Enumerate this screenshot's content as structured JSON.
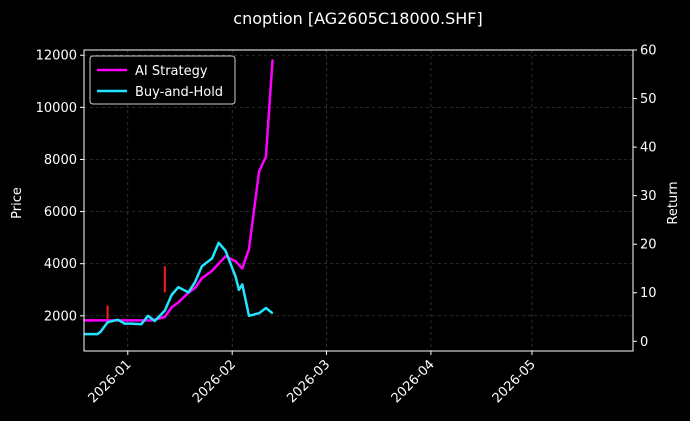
{
  "chart_data": {
    "type": "line",
    "title": "cnoption [AG2605C18000.SHF]",
    "xlabel": "",
    "ylabel": "Price",
    "y2label": "Return",
    "xlim": [
      "2025-12-19",
      "2026-05-31"
    ],
    "ylim": [
      650,
      12200
    ],
    "y2lim": [
      -2,
      60
    ],
    "xticks": [
      "2026-01",
      "2026-02",
      "2026-03",
      "2026-04",
      "2026-05"
    ],
    "yticks": [
      2000,
      4000,
      6000,
      8000,
      10000,
      12000
    ],
    "y2ticks": [
      0,
      10,
      20,
      30,
      40,
      50,
      60
    ],
    "grid": true,
    "legend": "top-left",
    "series": [
      {
        "name": "AI Strategy",
        "color": "#ff00ff",
        "axis": "right",
        "x": [
          "2025-12-19",
          "2025-12-23",
          "2025-12-26",
          "2025-12-29",
          "2025-12-31",
          "2026-01-02",
          "2026-01-05",
          "2026-01-08",
          "2026-01-12",
          "2026-01-14",
          "2026-01-16",
          "2026-01-19",
          "2026-01-21",
          "2026-01-23",
          "2026-01-26",
          "2026-01-28",
          "2026-01-30",
          "2026-02-02",
          "2026-02-04",
          "2026-02-06",
          "2026-02-09",
          "2026-02-11",
          "2026-02-13"
        ],
        "values": [
          4.3,
          4.3,
          4.3,
          4.3,
          4.3,
          4.3,
          4.3,
          4.3,
          5.0,
          7.0,
          8.0,
          10.0,
          11.0,
          13.0,
          14.5,
          16.0,
          17.5,
          16.5,
          15.0,
          19.0,
          35.0,
          38.0,
          58.0
        ]
      },
      {
        "name": "Buy-and-Hold",
        "color": "#22e5ff",
        "axis": "left",
        "x": [
          "2025-12-19",
          "2025-12-23",
          "2025-12-24",
          "2025-12-26",
          "2025-12-29",
          "2025-12-31",
          "2026-01-02",
          "2026-01-05",
          "2026-01-07",
          "2026-01-09",
          "2026-01-12",
          "2026-01-14",
          "2026-01-16",
          "2026-01-19",
          "2026-01-21",
          "2026-01-23",
          "2026-01-26",
          "2026-01-28",
          "2026-01-30",
          "2026-02-02",
          "2026-02-03",
          "2026-02-04",
          "2026-02-06",
          "2026-02-09",
          "2026-02-11",
          "2026-02-13"
        ],
        "values": [
          1300,
          1300,
          1400,
          1750,
          1850,
          1700,
          1700,
          1680,
          2000,
          1800,
          2200,
          2800,
          3100,
          2900,
          3300,
          3900,
          4200,
          4800,
          4500,
          3500,
          3000,
          3200,
          2000,
          2100,
          2300,
          2100
        ]
      }
    ],
    "price_bars": [
      {
        "x": "2025-12-26",
        "low": 1800,
        "high": 2400
      },
      {
        "x": "2026-01-12",
        "low": 2900,
        "high": 3900
      }
    ]
  }
}
